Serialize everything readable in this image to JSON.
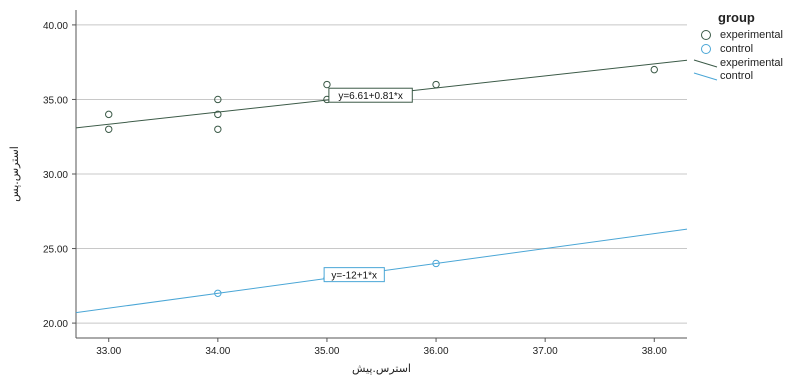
{
  "chart_data": {
    "type": "scatter",
    "xlabel": "استرس.پیش",
    "ylabel": "استرس.پس",
    "xlim": [
      32.7,
      38.3
    ],
    "ylim": [
      19.0,
      41.0
    ],
    "xticks": [
      "33.00",
      "34.00",
      "35.00",
      "36.00",
      "37.00",
      "38.00"
    ],
    "yticks": [
      "20.00",
      "25.00",
      "30.00",
      "35.00",
      "40.00"
    ],
    "xtick_values": [
      33,
      34,
      35,
      36,
      37,
      38
    ],
    "ytick_values": [
      20,
      25,
      30,
      35,
      40
    ],
    "grid": "horizontal",
    "legend": {
      "title": "group",
      "position": "top-right",
      "entries": [
        {
          "label": "experimental",
          "kind": "point"
        },
        {
          "label": "control",
          "kind": "point"
        },
        {
          "label": "experimental",
          "kind": "line"
        },
        {
          "label": "control",
          "kind": "line"
        }
      ]
    },
    "series": [
      {
        "name": "experimental",
        "color": "#3b5a47",
        "points": [
          [
            33,
            34
          ],
          [
            33,
            33
          ],
          [
            34,
            35
          ],
          [
            34,
            34
          ],
          [
            34,
            33
          ],
          [
            35,
            36
          ],
          [
            35,
            35
          ],
          [
            36,
            36
          ],
          [
            38,
            37
          ]
        ],
        "fit": {
          "intercept": 6.61,
          "slope": 0.81,
          "label": "y=6.61+0.81*x",
          "label_x": 35.4
        }
      },
      {
        "name": "control",
        "color": "#4aa6d6",
        "points": [
          [
            34,
            22
          ],
          [
            35,
            23
          ],
          [
            36,
            24
          ]
        ],
        "fit": {
          "intercept": -12,
          "slope": 1,
          "label": "y=-12+1*x",
          "label_x": 35.25
        }
      }
    ]
  }
}
